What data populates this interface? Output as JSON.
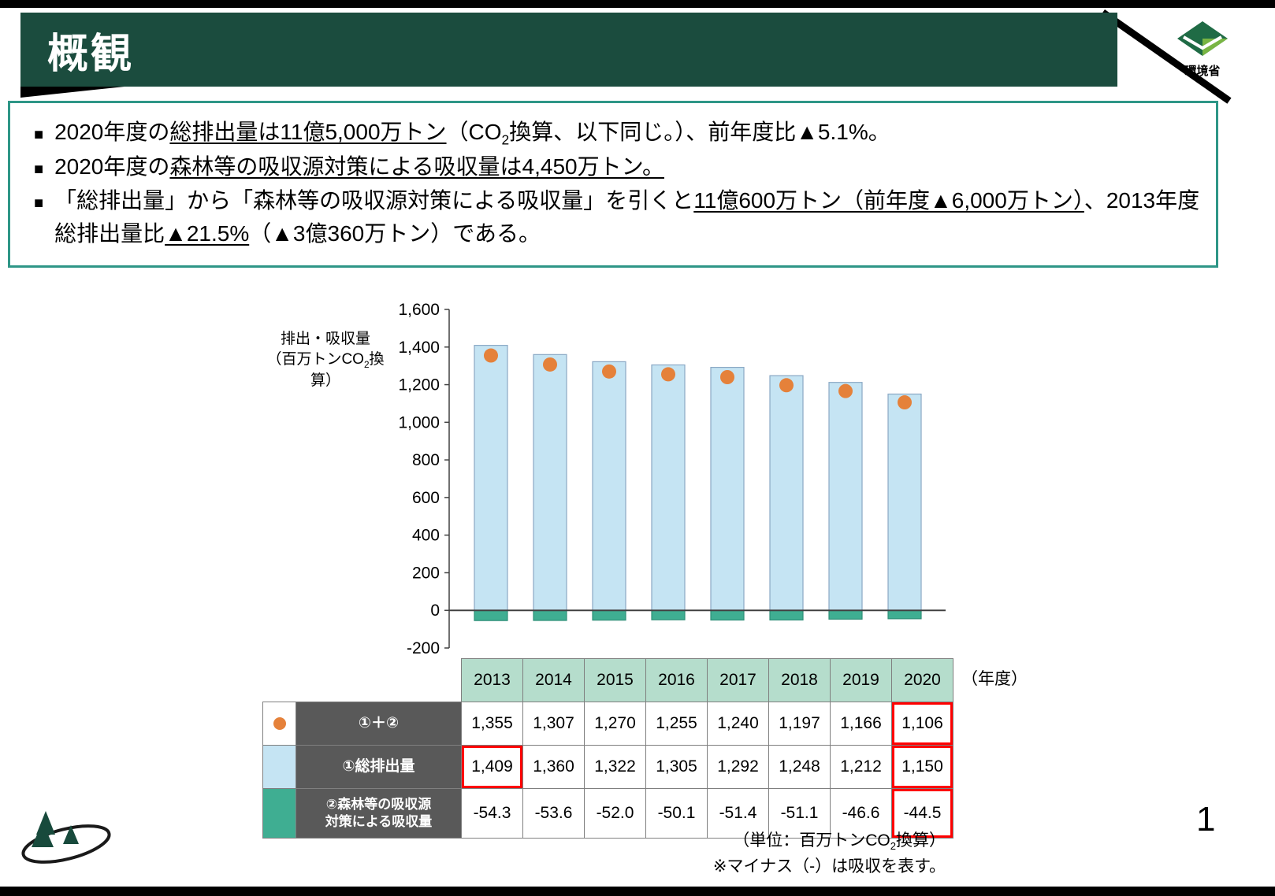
{
  "page": {
    "top_title": "概観",
    "page_number": "1",
    "ministry": "環境省"
  },
  "summary": {
    "bullet_marker": "■",
    "bullets": [
      [
        {
          "t": "2020年度の"
        },
        {
          "t": "総排出量は11億5,000万トン",
          "u": true
        },
        {
          "t": "（CO"
        },
        {
          "t": "2",
          "sub": true
        },
        {
          "t": "換算、以下同じ。）、前年度比▲5.1%。"
        }
      ],
      [
        {
          "t": "2020年度の"
        },
        {
          "t": "森林等の吸収源対策による吸収量は4,450万トン。",
          "u": true
        }
      ],
      [
        {
          "t": "「総排出量」から「森林等の吸収源対策による吸収量」を引くと"
        },
        {
          "t": "11億600万トン（前年度▲6,000万トン）",
          "u": true
        },
        {
          "t": "、2013年度総排出量比"
        },
        {
          "t": "▲21.5%",
          "u": true
        },
        {
          "t": "（▲3億360万トン）である。"
        }
      ]
    ]
  },
  "chart_data": {
    "type": "bar",
    "categories": [
      "2013",
      "2014",
      "2015",
      "2016",
      "2017",
      "2018",
      "2019",
      "2020"
    ],
    "series": [
      {
        "name": "①＋②",
        "plot": "scatter",
        "color": "#e5813a",
        "values": [
          1355,
          1307,
          1270,
          1255,
          1240,
          1197,
          1166,
          1106
        ]
      },
      {
        "name": "①総排出量",
        "plot": "bar",
        "color": "#c5e4f3",
        "border": "#8aa8c4",
        "values": [
          1409,
          1360,
          1322,
          1305,
          1292,
          1248,
          1212,
          1150
        ]
      },
      {
        "name": "②森林等の吸収源対策による吸収量",
        "plot": "bar",
        "color": "#3fae92",
        "border": "#2f8f78",
        "values": [
          -54.3,
          -53.6,
          -52.0,
          -50.1,
          -51.4,
          -51.1,
          -46.6,
          -44.5
        ]
      }
    ],
    "ylabel_line1": "排出・吸収量",
    "ylabel_line2": [
      {
        "t": "（百万トンCO"
      },
      {
        "t": "2",
        "sub": true
      },
      {
        "t": "換算）"
      }
    ],
    "ylim": [
      -200,
      1600
    ],
    "ytick_step": 200,
    "grid": false,
    "legend_position": "table-below"
  },
  "table": {
    "years": [
      "2013",
      "2014",
      "2015",
      "2016",
      "2017",
      "2018",
      "2019",
      "2020"
    ],
    "year_axis_label": "（年度）",
    "rows": [
      {
        "legend": "dot-orange",
        "label_lines": [
          "①＋②"
        ],
        "values": [
          "1,355",
          "1,307",
          "1,270",
          "1,255",
          "1,240",
          "1,197",
          "1,166",
          "1,106"
        ],
        "highlight_cols": [
          7
        ]
      },
      {
        "legend": "swatch-blue",
        "label_lines": [
          "①総排出量"
        ],
        "values": [
          "1,409",
          "1,360",
          "1,322",
          "1,305",
          "1,292",
          "1,248",
          "1,212",
          "1,150"
        ],
        "highlight_cols": [
          0,
          7
        ]
      },
      {
        "legend": "swatch-green",
        "label_lines": [
          "②森林等の吸収源",
          "対策による吸収量"
        ],
        "values": [
          "-54.3",
          "-53.6",
          "-52.0",
          "-50.1",
          "-51.4",
          "-51.1",
          "-46.6",
          "-44.5"
        ],
        "highlight_cols": [
          7
        ]
      }
    ],
    "notes": [
      [
        {
          "t": "（単位：百万トンCO"
        },
        {
          "t": "2",
          "sub": true
        },
        {
          "t": "換算）"
        }
      ],
      [
        {
          "t": "※マイナス（-）は吸収を表す。"
        }
      ]
    ],
    "highlight_color": "#ff0000"
  },
  "colors": {
    "banner_green": "#1b4c3e",
    "box_border_teal": "#2e9687",
    "bar_blue": "#c5e4f3",
    "bar_blue_border": "#8aa8c4",
    "bar_green": "#3fae92",
    "dot_orange": "#e5813a",
    "table_header_green": "#b5ddcc",
    "label_cell_gray": "#595959"
  }
}
